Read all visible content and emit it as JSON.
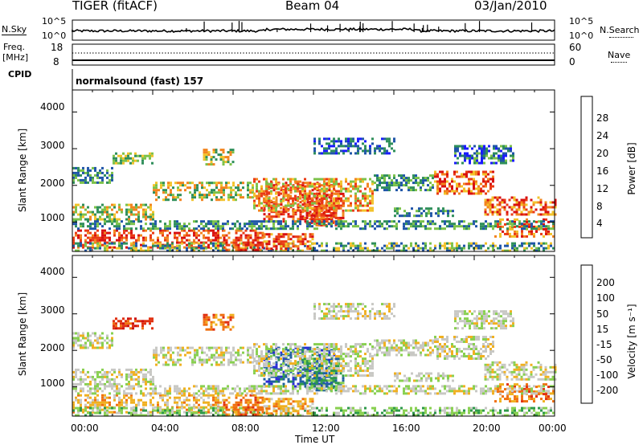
{
  "header": {
    "radar": "TIGER (fitACF)",
    "beam": "Beam 04",
    "date": "03/Jan/2010"
  },
  "nsky_panel": {
    "left_label": "N.Sky",
    "right_label": "N.Search",
    "left_ticks": [
      "10^5",
      "10^0"
    ],
    "right_ticks": [
      "10^5",
      "10^0"
    ]
  },
  "freq_panel": {
    "left_label_line1": "Freq.",
    "left_label_line2": "[MHz]",
    "right_label": "Nave",
    "left_ticks": [
      "18",
      "8"
    ],
    "right_ticks": [
      "60",
      "0"
    ]
  },
  "cpid_panel": {
    "label": "CPID",
    "text": "normalsound (fast) 157"
  },
  "chart_data": [
    {
      "type": "heatmap",
      "name": "power",
      "ylabel": "Slant Range [km]",
      "ylim": [
        200,
        4600
      ],
      "yticks": [
        "1000",
        "2000",
        "3000",
        "4000"
      ],
      "colorbar_label": "Power [dB]",
      "colorbar_ticks": [
        "4",
        "8",
        "12",
        "16",
        "20",
        "24",
        "28"
      ],
      "colorbar_colors": [
        "#1a1aff",
        "#1f55a8",
        "#2f8f5a",
        "#7cc24a",
        "#f2c22a",
        "#f2841e",
        "#ea3a14",
        "#d81010"
      ]
    },
    {
      "type": "heatmap",
      "name": "velocity",
      "ylabel": "Slant Range [km]",
      "ylim": [
        200,
        4600
      ],
      "yticks": [
        "1000",
        "2000",
        "3000",
        "4000"
      ],
      "colorbar_label": "Velocity [m s⁻¹]",
      "colorbar_ticks": [
        "200",
        "100",
        "50",
        "15",
        "-15",
        "-50",
        "-100",
        "-200"
      ],
      "colorbar_colors": [
        "#2a2ad6",
        "#1f5fa0",
        "#2e9a4a",
        "#88d050",
        "#c8c8c4",
        "#f0b020",
        "#f07010",
        "#e03010",
        "#cc1010"
      ]
    }
  ],
  "xaxis": {
    "label": "Time UT",
    "ticks": [
      "00:00",
      "04:00",
      "08:00",
      "12:00",
      "16:00",
      "20:00",
      "00:00"
    ]
  }
}
